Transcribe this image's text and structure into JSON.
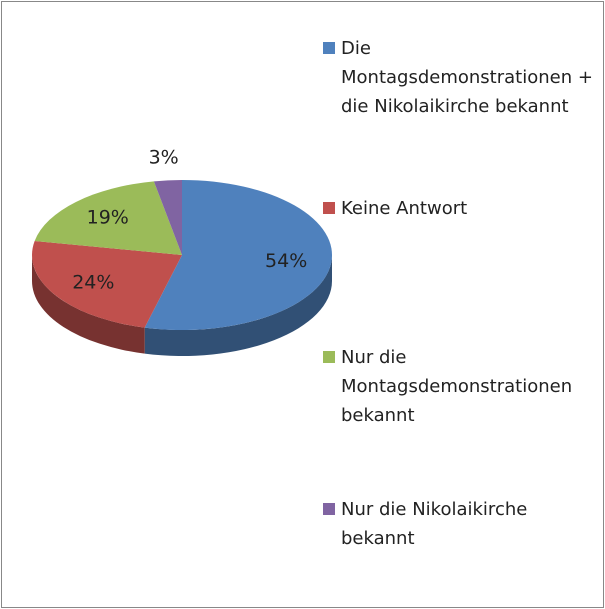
{
  "chart_data": {
    "type": "pie",
    "categories": [
      "Die Montagsdemonstrationen + die Nikolaikirche bekannt",
      "Keine Antwort",
      "Nur die Montagsdemonstrationen bekannt",
      "Nur die Nikolaikirche bekannt"
    ],
    "values": [
      54,
      24,
      19,
      3
    ],
    "value_labels": [
      "54%",
      "24%",
      "19%",
      "3%"
    ],
    "colors": [
      "#4f81bd",
      "#c0504d",
      "#9bbb59",
      "#8064a2"
    ],
    "legend": "right"
  }
}
